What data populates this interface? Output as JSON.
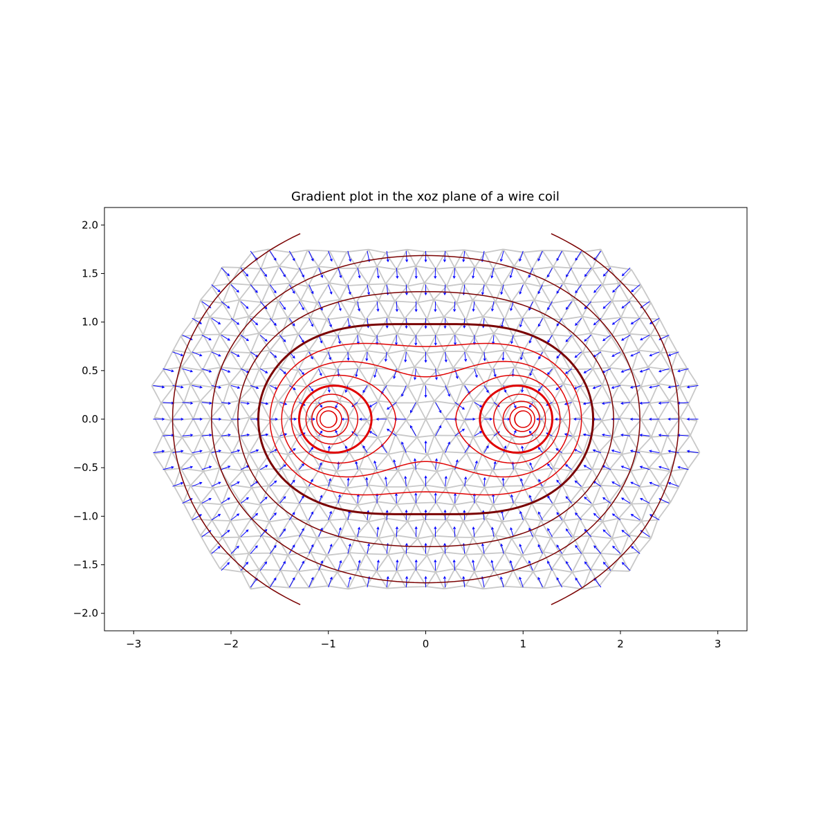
{
  "chart_data": {
    "type": "contour",
    "title": "Gradient plot in the xoz plane of a wire coil",
    "xlabel": "",
    "ylabel": "",
    "xlim": [
      -3.3,
      3.3
    ],
    "ylim": [
      -2.18,
      2.18
    ],
    "xticks": [
      -3,
      -2,
      -1,
      0,
      1,
      2,
      3
    ],
    "xtick_labels": [
      "−3",
      "−2",
      "−1",
      "0",
      "1",
      "2",
      "3"
    ],
    "yticks": [
      -2.0,
      -1.5,
      -1.0,
      -0.5,
      0.0,
      0.5,
      1.0,
      1.5,
      2.0
    ],
    "ytick_labels": [
      "−2.0",
      "−1.5",
      "−1.0",
      "−0.5",
      "0.0",
      "0.5",
      "1.0",
      "1.5",
      "2.0"
    ],
    "grid": false,
    "wire_crossings": [
      [
        -1,
        0
      ],
      [
        1,
        0
      ]
    ],
    "mesh_extent": {
      "x": [
        -2.9,
        2.9
      ],
      "y": [
        -1.9,
        1.9
      ]
    },
    "contour_crossings_on_x_axis": [
      1.08,
      1.12,
      1.17,
      1.23,
      1.3,
      1.38,
      1.48,
      1.6,
      1.72,
      1.93,
      2.2,
      2.6
    ],
    "highlighted_contour_crossings": [
      1.3,
      1.72
    ],
    "colors": {
      "mesh": "#c8c8c8",
      "arrows": "#0000ff",
      "contour_inner": "#e00000",
      "contour_outer": "#7a0000"
    }
  }
}
